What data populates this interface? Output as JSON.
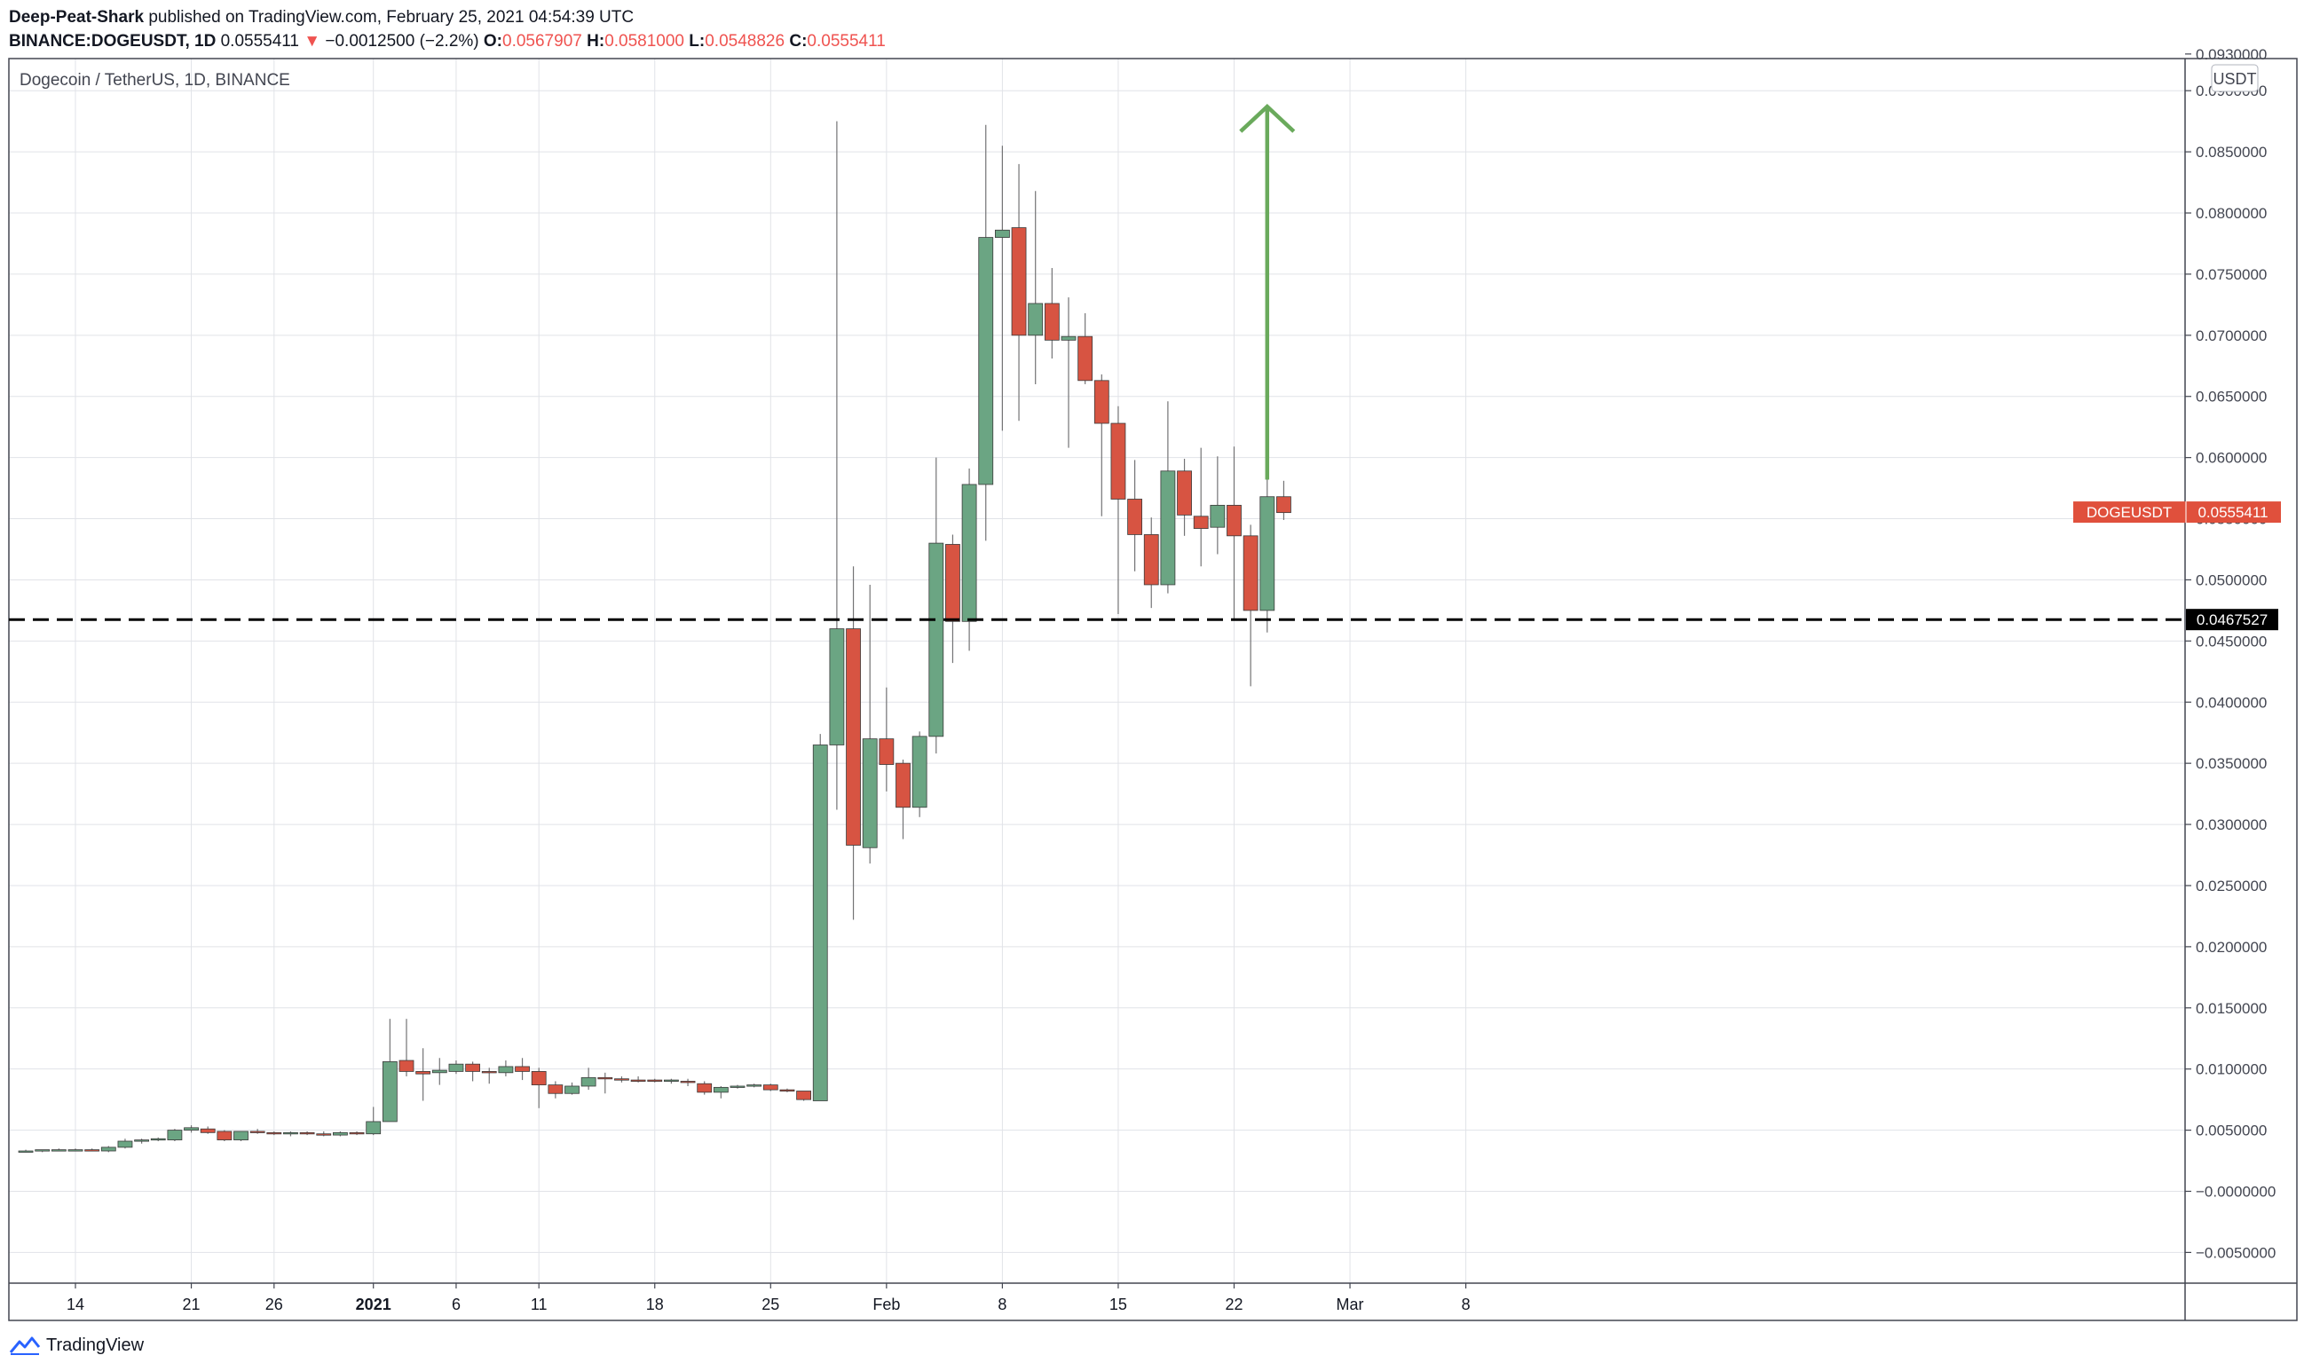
{
  "header": {
    "author": "Deep-Peat-Shark",
    "published": "published on TradingView.com, February 25, 2021 04:54:39 UTC",
    "symbol": "BINANCE:DOGEUSDT, 1D",
    "last": "0.0555411",
    "change_arrow": "▼",
    "change": "−0.0012500 (−2.2%)",
    "o_label": "O:",
    "o": "0.0567907",
    "h_label": "H:",
    "h": "0.0581000",
    "l_label": "L:",
    "l": "0.0548826",
    "c_label": "C:",
    "c": "0.0555411"
  },
  "chart_data": {
    "type": "candlestick",
    "title": "Dogecoin / TetherUS, 1D, BINANCE",
    "currency": "USDT",
    "ylim": [
      -0.005,
      0.0935
    ],
    "yticks": [
      {
        "value": 0.093,
        "label": "0.0930000"
      },
      {
        "value": 0.09,
        "label": "0.0900000"
      },
      {
        "value": 0.085,
        "label": "0.0850000"
      },
      {
        "value": 0.08,
        "label": "0.0800000"
      },
      {
        "value": 0.075,
        "label": "0.0750000"
      },
      {
        "value": 0.07,
        "label": "0.0700000"
      },
      {
        "value": 0.065,
        "label": "0.0650000"
      },
      {
        "value": 0.06,
        "label": "0.0600000"
      },
      {
        "value": 0.055,
        "label": "0.0550000"
      },
      {
        "value": 0.05,
        "label": "0.0500000"
      },
      {
        "value": 0.045,
        "label": "0.0450000"
      },
      {
        "value": 0.04,
        "label": "0.0400000"
      },
      {
        "value": 0.035,
        "label": "0.0350000"
      },
      {
        "value": 0.03,
        "label": "0.0300000"
      },
      {
        "value": 0.025,
        "label": "0.0250000"
      },
      {
        "value": 0.02,
        "label": "0.0200000"
      },
      {
        "value": 0.015,
        "label": "0.0150000"
      },
      {
        "value": 0.01,
        "label": "0.0100000"
      },
      {
        "value": 0.005,
        "label": "0.0050000"
      },
      {
        "value": 0.0,
        "label": "−0.0000000"
      },
      {
        "value": -0.005,
        "label": "−0.0050000"
      }
    ],
    "xticks": [
      {
        "date": "2020-12-14",
        "label": "14",
        "bold": false
      },
      {
        "date": "2020-12-21",
        "label": "21",
        "bold": false
      },
      {
        "date": "2020-12-26",
        "label": "26",
        "bold": false
      },
      {
        "date": "2021-01-01",
        "label": "2021",
        "bold": true
      },
      {
        "date": "2021-01-06",
        "label": "6",
        "bold": false
      },
      {
        "date": "2021-01-11",
        "label": "11",
        "bold": false
      },
      {
        "date": "2021-01-18",
        "label": "18",
        "bold": false
      },
      {
        "date": "2021-01-25",
        "label": "25",
        "bold": false
      },
      {
        "date": "2021-02-01",
        "label": "Feb",
        "bold": false
      },
      {
        "date": "2021-02-08",
        "label": "8",
        "bold": false
      },
      {
        "date": "2021-02-15",
        "label": "15",
        "bold": false
      },
      {
        "date": "2021-02-22",
        "label": "22",
        "bold": false
      },
      {
        "date": "2021-03-01",
        "label": "Mar",
        "bold": false
      },
      {
        "date": "2021-03-08",
        "label": "8",
        "bold": false
      }
    ],
    "candles": [
      {
        "date": "2020-12-11",
        "o": 0.0033,
        "h": 0.0034,
        "l": 0.0032,
        "c": 0.0033
      },
      {
        "date": "2020-12-12",
        "o": 0.0033,
        "h": 0.0034,
        "l": 0.0032,
        "c": 0.0034
      },
      {
        "date": "2020-12-13",
        "o": 0.0034,
        "h": 0.0035,
        "l": 0.0033,
        "c": 0.0034
      },
      {
        "date": "2020-12-14",
        "o": 0.0034,
        "h": 0.0035,
        "l": 0.0033,
        "c": 0.0034
      },
      {
        "date": "2020-12-15",
        "o": 0.0034,
        "h": 0.0035,
        "l": 0.0033,
        "c": 0.0033
      },
      {
        "date": "2020-12-16",
        "o": 0.0033,
        "h": 0.0037,
        "l": 0.0032,
        "c": 0.0036
      },
      {
        "date": "2020-12-17",
        "o": 0.0036,
        "h": 0.0043,
        "l": 0.0035,
        "c": 0.0041
      },
      {
        "date": "2020-12-18",
        "o": 0.0041,
        "h": 0.0043,
        "l": 0.0039,
        "c": 0.0042
      },
      {
        "date": "2020-12-19",
        "o": 0.0042,
        "h": 0.0044,
        "l": 0.0041,
        "c": 0.0043
      },
      {
        "date": "2020-12-20",
        "o": 0.0042,
        "h": 0.0051,
        "l": 0.0041,
        "c": 0.005
      },
      {
        "date": "2020-12-21",
        "o": 0.005,
        "h": 0.0054,
        "l": 0.0048,
        "c": 0.0052
      },
      {
        "date": "2020-12-22",
        "o": 0.0051,
        "h": 0.0053,
        "l": 0.0047,
        "c": 0.0048
      },
      {
        "date": "2020-12-23",
        "o": 0.0049,
        "h": 0.005,
        "l": 0.0041,
        "c": 0.0042
      },
      {
        "date": "2020-12-24",
        "o": 0.0042,
        "h": 0.0049,
        "l": 0.0041,
        "c": 0.0049
      },
      {
        "date": "2020-12-25",
        "o": 0.0049,
        "h": 0.0051,
        "l": 0.0047,
        "c": 0.0048
      },
      {
        "date": "2020-12-26",
        "o": 0.0048,
        "h": 0.0049,
        "l": 0.0046,
        "c": 0.0047
      },
      {
        "date": "2020-12-27",
        "o": 0.0047,
        "h": 0.0049,
        "l": 0.0045,
        "c": 0.0048
      },
      {
        "date": "2020-12-28",
        "o": 0.0048,
        "h": 0.0049,
        "l": 0.0046,
        "c": 0.0047
      },
      {
        "date": "2020-12-29",
        "o": 0.0047,
        "h": 0.0049,
        "l": 0.0045,
        "c": 0.0046
      },
      {
        "date": "2020-12-30",
        "o": 0.0046,
        "h": 0.0049,
        "l": 0.0045,
        "c": 0.0048
      },
      {
        "date": "2020-12-31",
        "o": 0.0048,
        "h": 0.0049,
        "l": 0.0046,
        "c": 0.0047
      },
      {
        "date": "2021-01-01",
        "o": 0.0047,
        "h": 0.0069,
        "l": 0.0046,
        "c": 0.0057
      },
      {
        "date": "2021-01-02",
        "o": 0.0057,
        "h": 0.0141,
        "l": 0.0057,
        "c": 0.0106
      },
      {
        "date": "2021-01-03",
        "o": 0.0107,
        "h": 0.0141,
        "l": 0.0094,
        "c": 0.0098
      },
      {
        "date": "2021-01-04",
        "o": 0.0098,
        "h": 0.0117,
        "l": 0.0074,
        "c": 0.0096
      },
      {
        "date": "2021-01-05",
        "o": 0.0097,
        "h": 0.0109,
        "l": 0.0087,
        "c": 0.0099
      },
      {
        "date": "2021-01-06",
        "o": 0.0098,
        "h": 0.0107,
        "l": 0.0096,
        "c": 0.0104
      },
      {
        "date": "2021-01-07",
        "o": 0.0104,
        "h": 0.0106,
        "l": 0.009,
        "c": 0.0098
      },
      {
        "date": "2021-01-08",
        "o": 0.0098,
        "h": 0.0101,
        "l": 0.0088,
        "c": 0.0097
      },
      {
        "date": "2021-01-09",
        "o": 0.0097,
        "h": 0.0107,
        "l": 0.0094,
        "c": 0.0102
      },
      {
        "date": "2021-01-10",
        "o": 0.0102,
        "h": 0.0109,
        "l": 0.0091,
        "c": 0.0098
      },
      {
        "date": "2021-01-11",
        "o": 0.0098,
        "h": 0.0101,
        "l": 0.0068,
        "c": 0.0087
      },
      {
        "date": "2021-01-12",
        "o": 0.0087,
        "h": 0.009,
        "l": 0.0076,
        "c": 0.008
      },
      {
        "date": "2021-01-13",
        "o": 0.008,
        "h": 0.0089,
        "l": 0.0079,
        "c": 0.0086
      },
      {
        "date": "2021-01-14",
        "o": 0.0086,
        "h": 0.0101,
        "l": 0.0083,
        "c": 0.0093
      },
      {
        "date": "2021-01-15",
        "o": 0.0093,
        "h": 0.0097,
        "l": 0.008,
        "c": 0.0092
      },
      {
        "date": "2021-01-16",
        "o": 0.0092,
        "h": 0.0094,
        "l": 0.0089,
        "c": 0.0091
      },
      {
        "date": "2021-01-17",
        "o": 0.0091,
        "h": 0.0094,
        "l": 0.0089,
        "c": 0.009
      },
      {
        "date": "2021-01-18",
        "o": 0.0091,
        "h": 0.0092,
        "l": 0.0089,
        "c": 0.009
      },
      {
        "date": "2021-01-19",
        "o": 0.0091,
        "h": 0.0092,
        "l": 0.0088,
        "c": 0.0091
      },
      {
        "date": "2021-01-20",
        "o": 0.009,
        "h": 0.0092,
        "l": 0.0086,
        "c": 0.0089
      },
      {
        "date": "2021-01-21",
        "o": 0.0088,
        "h": 0.009,
        "l": 0.0079,
        "c": 0.0081
      },
      {
        "date": "2021-01-22",
        "o": 0.0081,
        "h": 0.0086,
        "l": 0.0076,
        "c": 0.0085
      },
      {
        "date": "2021-01-23",
        "o": 0.0085,
        "h": 0.0087,
        "l": 0.0084,
        "c": 0.0086
      },
      {
        "date": "2021-01-24",
        "o": 0.0086,
        "h": 0.0088,
        "l": 0.0085,
        "c": 0.0087
      },
      {
        "date": "2021-01-25",
        "o": 0.0087,
        "h": 0.0088,
        "l": 0.0082,
        "c": 0.0083
      },
      {
        "date": "2021-01-26",
        "o": 0.0083,
        "h": 0.0084,
        "l": 0.0081,
        "c": 0.0082
      },
      {
        "date": "2021-01-27",
        "o": 0.0082,
        "h": 0.0082,
        "l": 0.0074,
        "c": 0.0075
      },
      {
        "date": "2021-01-28",
        "o": 0.0074,
        "h": 0.0374,
        "l": 0.0074,
        "c": 0.0365
      },
      {
        "date": "2021-01-29",
        "o": 0.0365,
        "h": 0.0875,
        "l": 0.0312,
        "c": 0.046
      },
      {
        "date": "2021-01-30",
        "o": 0.046,
        "h": 0.0511,
        "l": 0.0222,
        "c": 0.0283
      },
      {
        "date": "2021-01-31",
        "o": 0.0281,
        "h": 0.0496,
        "l": 0.0268,
        "c": 0.037
      },
      {
        "date": "2021-02-01",
        "o": 0.037,
        "h": 0.0412,
        "l": 0.0327,
        "c": 0.0349
      },
      {
        "date": "2021-02-02",
        "o": 0.035,
        "h": 0.0353,
        "l": 0.0288,
        "c": 0.0314
      },
      {
        "date": "2021-02-03",
        "o": 0.0314,
        "h": 0.0376,
        "l": 0.0306,
        "c": 0.0372
      },
      {
        "date": "2021-02-04",
        "o": 0.0372,
        "h": 0.06,
        "l": 0.0358,
        "c": 0.053
      },
      {
        "date": "2021-02-05",
        "o": 0.0529,
        "h": 0.0537,
        "l": 0.0432,
        "c": 0.0466
      },
      {
        "date": "2021-02-06",
        "o": 0.0466,
        "h": 0.0591,
        "l": 0.0442,
        "c": 0.0578
      },
      {
        "date": "2021-02-07",
        "o": 0.0578,
        "h": 0.0872,
        "l": 0.0532,
        "c": 0.078
      },
      {
        "date": "2021-02-08",
        "o": 0.078,
        "h": 0.0855,
        "l": 0.0622,
        "c": 0.0786
      },
      {
        "date": "2021-02-09",
        "o": 0.0788,
        "h": 0.084,
        "l": 0.063,
        "c": 0.07
      },
      {
        "date": "2021-02-10",
        "o": 0.07,
        "h": 0.0818,
        "l": 0.066,
        "c": 0.0726
      },
      {
        "date": "2021-02-11",
        "o": 0.0726,
        "h": 0.0755,
        "l": 0.0681,
        "c": 0.0696
      },
      {
        "date": "2021-02-12",
        "o": 0.0696,
        "h": 0.0731,
        "l": 0.0608,
        "c": 0.0699
      },
      {
        "date": "2021-02-13",
        "o": 0.0699,
        "h": 0.0718,
        "l": 0.066,
        "c": 0.0663
      },
      {
        "date": "2021-02-14",
        "o": 0.0663,
        "h": 0.0668,
        "l": 0.0552,
        "c": 0.0628
      },
      {
        "date": "2021-02-15",
        "o": 0.0628,
        "h": 0.0642,
        "l": 0.0472,
        "c": 0.0566
      },
      {
        "date": "2021-02-16",
        "o": 0.0566,
        "h": 0.0598,
        "l": 0.0507,
        "c": 0.0537
      },
      {
        "date": "2021-02-17",
        "o": 0.0537,
        "h": 0.0551,
        "l": 0.0477,
        "c": 0.0496
      },
      {
        "date": "2021-02-18",
        "o": 0.0496,
        "h": 0.0646,
        "l": 0.0489,
        "c": 0.0589
      },
      {
        "date": "2021-02-19",
        "o": 0.0589,
        "h": 0.0599,
        "l": 0.0536,
        "c": 0.0553
      },
      {
        "date": "2021-02-20",
        "o": 0.0552,
        "h": 0.0608,
        "l": 0.0511,
        "c": 0.0542
      },
      {
        "date": "2021-02-21",
        "o": 0.0543,
        "h": 0.0601,
        "l": 0.0521,
        "c": 0.0561
      },
      {
        "date": "2021-02-22",
        "o": 0.0561,
        "h": 0.0609,
        "l": 0.0467,
        "c": 0.0536
      },
      {
        "date": "2021-02-23",
        "o": 0.0536,
        "h": 0.0545,
        "l": 0.0413,
        "c": 0.0475
      },
      {
        "date": "2021-02-24",
        "o": 0.0475,
        "h": 0.0607,
        "l": 0.0457,
        "c": 0.0568
      },
      {
        "date": "2021-02-25",
        "o": 0.0568,
        "h": 0.0581,
        "l": 0.0549,
        "c": 0.0555
      }
    ],
    "support_level": {
      "value": 0.0467527,
      "label": "0.0467527"
    },
    "price_tag": {
      "symbol": "DOGEUSDT",
      "value": 0.0555411,
      "label": "0.0555411"
    },
    "arrow": {
      "date": "2021-02-24",
      "from": 0.0582,
      "to": 0.0887
    },
    "colors": {
      "up": "#6ba583",
      "down": "#d75442",
      "wick": "#737375",
      "grid": "#e1e3e8",
      "support": "#000000",
      "arrow": "#6aaa5c",
      "price_tag": "#e0503c"
    }
  },
  "footer": {
    "brand": "TradingView"
  }
}
